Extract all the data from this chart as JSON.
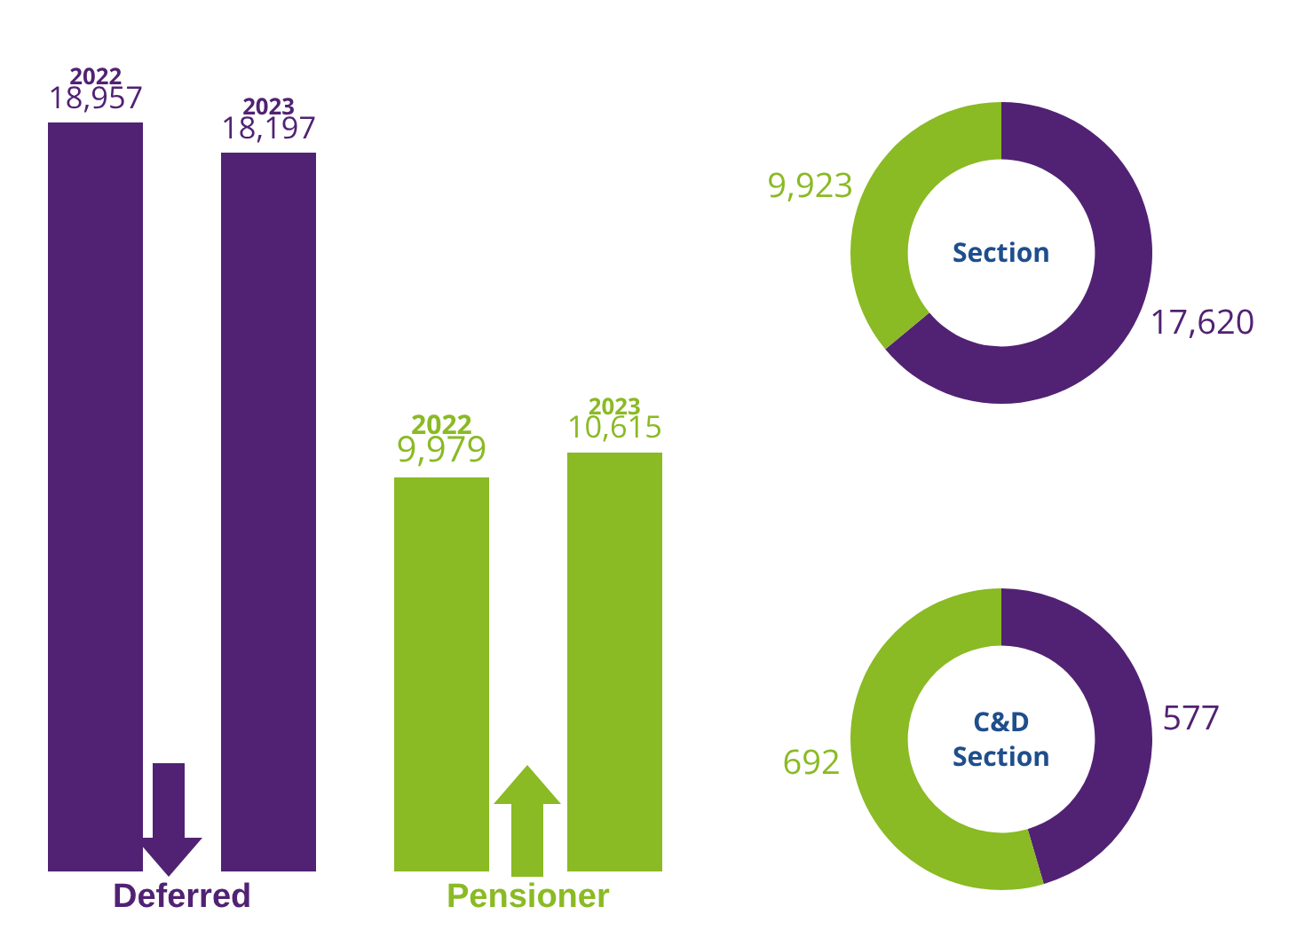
{
  "chart_data": [
    {
      "type": "bar",
      "categories": [
        "Deferred",
        "Pensioner"
      ],
      "series": [
        {
          "name": "2022",
          "colors": [
            "#512273",
            "#8aba24"
          ],
          "values": [
            18957,
            9979
          ],
          "value_labels": [
            "18,957",
            "9,979"
          ]
        },
        {
          "name": "2023",
          "colors": [
            "#512273",
            "#8aba24"
          ],
          "values": [
            18197,
            10615
          ],
          "value_labels": [
            "18,197",
            "10,615"
          ]
        }
      ]
    },
    {
      "type": "donut",
      "title": "Section",
      "categories": [
        null,
        null
      ],
      "values": [
        17620,
        9923
      ],
      "colors": [
        "#512273",
        "#8aba24"
      ],
      "value_labels": [
        "17,620",
        "9,923"
      ]
    },
    {
      "type": "donut",
      "title": "C&D\nSection",
      "categories": [
        null,
        null
      ],
      "values": [
        577,
        692
      ],
      "colors": [
        "#512273",
        "#8aba24"
      ],
      "value_labels": [
        "577",
        "692"
      ]
    }
  ]
}
